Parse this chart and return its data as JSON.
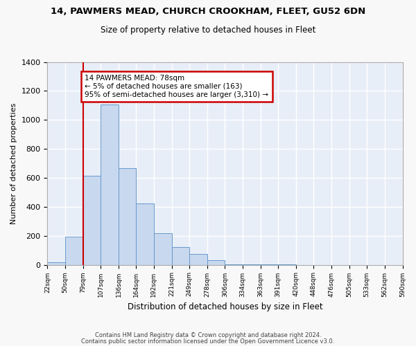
{
  "title": "14, PAWMERS MEAD, CHURCH CROOKHAM, FLEET, GU52 6DN",
  "subtitle": "Size of property relative to detached houses in Fleet",
  "xlabel": "Distribution of detached houses by size in Fleet",
  "ylabel": "Number of detached properties",
  "bar_heights": [
    15,
    193,
    615,
    1105,
    665,
    425,
    220,
    120,
    75,
    30,
    5,
    5,
    5,
    5,
    0,
    0,
    0,
    0,
    0,
    0
  ],
  "bin_edges": [
    22,
    50,
    79,
    107,
    136,
    164,
    192,
    221,
    249,
    278,
    306,
    334,
    363,
    391,
    420,
    448,
    476,
    505,
    533,
    562,
    590
  ],
  "tick_labels": [
    "22sqm",
    "50sqm",
    "79sqm",
    "107sqm",
    "136sqm",
    "164sqm",
    "192sqm",
    "221sqm",
    "249sqm",
    "278sqm",
    "306sqm",
    "334sqm",
    "363sqm",
    "391sqm",
    "420sqm",
    "448sqm",
    "476sqm",
    "505sqm",
    "533sqm",
    "562sqm",
    "590sqm"
  ],
  "bar_color": "#c8d8ee",
  "bar_edge_color": "#6699cc",
  "vline_x": 79,
  "vline_color": "#cc0000",
  "annotation_text": "14 PAWMERS MEAD: 78sqm\n← 5% of detached houses are smaller (163)\n95% of semi-detached houses are larger (3,310) →",
  "annotation_box_color": "#ffffff",
  "annotation_box_edge": "#cc0000",
  "ylim": [
    0,
    1400
  ],
  "yticks": [
    0,
    200,
    400,
    600,
    800,
    1000,
    1200,
    1400
  ],
  "plot_bg_color": "#e8eef8",
  "grid_color": "#ffffff",
  "fig_bg_color": "#f8f8f8",
  "footer_line1": "Contains HM Land Registry data © Crown copyright and database right 2024.",
  "footer_line2": "Contains public sector information licensed under the Open Government Licence v3.0."
}
